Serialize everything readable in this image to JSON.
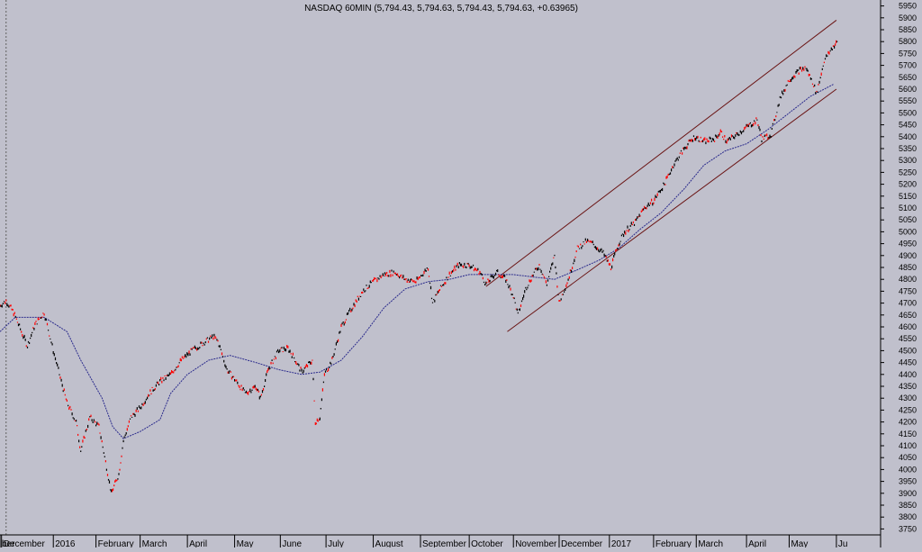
{
  "header": {
    "text": "NASDAQ 60MIN (5,794.43, 5,794.63, 5,794.43, 5,794.63, +0.63965)"
  },
  "colors": {
    "background": "#c0c0cc",
    "price_up": "#000000",
    "price_down": "#ff0000",
    "moving_average": "#2a2a8c",
    "trend_channel": "#6a1414",
    "axis": "#000000"
  },
  "chart_data": {
    "type": "line",
    "title": "NASDAQ 60MIN (5,794.43, 5,794.63, 5,794.43, 5,794.63, +0.63965)",
    "xlabel": "",
    "ylabel": "",
    "ylim": [
      3725,
      5975
    ],
    "xlim": [
      "2015-11-30",
      "2017-06-30"
    ],
    "y_ticks": [
      3750,
      3800,
      3850,
      3900,
      3950,
      4000,
      4050,
      4100,
      4150,
      4200,
      4250,
      4300,
      4350,
      4400,
      4450,
      4500,
      4550,
      4600,
      4650,
      4700,
      4750,
      4800,
      4850,
      4900,
      4950,
      5000,
      5050,
      5100,
      5150,
      5200,
      5250,
      5300,
      5350,
      5400,
      5450,
      5500,
      5550,
      5600,
      5650,
      5700,
      5750,
      5800,
      5850,
      5900,
      5950
    ],
    "x_ticks": [
      {
        "label": "ber",
        "date": "2015-11-30"
      },
      {
        "label": "December",
        "date": "2015-12-01"
      },
      {
        "label": "2016",
        "date": "2016-01-04"
      },
      {
        "label": "February",
        "date": "2016-02-01"
      },
      {
        "label": "March",
        "date": "2016-03-01"
      },
      {
        "label": "April",
        "date": "2016-04-01"
      },
      {
        "label": "May",
        "date": "2016-05-02"
      },
      {
        "label": "June",
        "date": "2016-06-01"
      },
      {
        "label": "July",
        "date": "2016-07-01"
      },
      {
        "label": "August",
        "date": "2016-08-01"
      },
      {
        "label": "September",
        "date": "2016-09-01"
      },
      {
        "label": "October",
        "date": "2016-10-03"
      },
      {
        "label": "November",
        "date": "2016-11-01"
      },
      {
        "label": "December",
        "date": "2016-12-01"
      },
      {
        "label": "2017",
        "date": "2017-01-03"
      },
      {
        "label": "February",
        "date": "2017-02-01"
      },
      {
        "label": "March",
        "date": "2017-03-01"
      },
      {
        "label": "April",
        "date": "2017-04-03"
      },
      {
        "label": "May",
        "date": "2017-05-01"
      },
      {
        "label": "Ju",
        "date": "2017-06-01"
      }
    ],
    "vertical_marker_date": "2015-12-04",
    "series": [
      {
        "values_role": "price",
        "points": [
          [
            "2015-11-30",
            4690
          ],
          [
            "2015-12-04",
            4710
          ],
          [
            "2015-12-09",
            4660
          ],
          [
            "2015-12-14",
            4580
          ],
          [
            "2015-12-18",
            4520
          ],
          [
            "2015-12-23",
            4610
          ],
          [
            "2015-12-29",
            4660
          ],
          [
            "2016-01-04",
            4500
          ],
          [
            "2016-01-08",
            4400
          ],
          [
            "2016-01-13",
            4280
          ],
          [
            "2016-01-19",
            4200
          ],
          [
            "2016-01-22",
            4080
          ],
          [
            "2016-01-28",
            4220
          ],
          [
            "2016-02-03",
            4180
          ],
          [
            "2016-02-08",
            4010
          ],
          [
            "2016-02-11",
            3900
          ],
          [
            "2016-02-16",
            3980
          ],
          [
            "2016-02-19",
            4120
          ],
          [
            "2016-02-24",
            4220
          ],
          [
            "2016-03-01",
            4260
          ],
          [
            "2016-03-07",
            4320
          ],
          [
            "2016-03-14",
            4370
          ],
          [
            "2016-03-21",
            4400
          ],
          [
            "2016-03-28",
            4460
          ],
          [
            "2016-04-04",
            4500
          ],
          [
            "2016-04-11",
            4530
          ],
          [
            "2016-04-18",
            4560
          ],
          [
            "2016-04-21",
            4540
          ],
          [
            "2016-04-27",
            4420
          ],
          [
            "2016-05-02",
            4380
          ],
          [
            "2016-05-09",
            4320
          ],
          [
            "2016-05-16",
            4350
          ],
          [
            "2016-05-19",
            4300
          ],
          [
            "2016-05-24",
            4420
          ],
          [
            "2016-05-31",
            4500
          ],
          [
            "2016-06-06",
            4510
          ],
          [
            "2016-06-10",
            4470
          ],
          [
            "2016-06-15",
            4410
          ],
          [
            "2016-06-22",
            4460
          ],
          [
            "2016-06-24",
            4200
          ],
          [
            "2016-06-27",
            4220
          ],
          [
            "2016-06-30",
            4400
          ],
          [
            "2016-07-05",
            4460
          ],
          [
            "2016-07-11",
            4600
          ],
          [
            "2016-07-18",
            4680
          ],
          [
            "2016-07-25",
            4750
          ],
          [
            "2016-08-01",
            4790
          ],
          [
            "2016-08-08",
            4820
          ],
          [
            "2016-08-15",
            4830
          ],
          [
            "2016-08-22",
            4800
          ],
          [
            "2016-08-29",
            4790
          ],
          [
            "2016-09-06",
            4850
          ],
          [
            "2016-09-09",
            4700
          ],
          [
            "2016-09-13",
            4750
          ],
          [
            "2016-09-20",
            4820
          ],
          [
            "2016-09-26",
            4860
          ],
          [
            "2016-10-03",
            4860
          ],
          [
            "2016-10-10",
            4830
          ],
          [
            "2016-10-14",
            4780
          ],
          [
            "2016-10-21",
            4830
          ],
          [
            "2016-10-27",
            4800
          ],
          [
            "2016-11-01",
            4730
          ],
          [
            "2016-11-04",
            4650
          ],
          [
            "2016-11-09",
            4760
          ],
          [
            "2016-11-14",
            4820
          ],
          [
            "2016-11-18",
            4860
          ],
          [
            "2016-11-23",
            4780
          ],
          [
            "2016-11-28",
            4900
          ],
          [
            "2016-12-01",
            4700
          ],
          [
            "2016-12-07",
            4800
          ],
          [
            "2016-12-13",
            4930
          ],
          [
            "2016-12-19",
            4960
          ],
          [
            "2016-12-23",
            4950
          ],
          [
            "2016-12-30",
            4910
          ],
          [
            "2017-01-04",
            4850
          ],
          [
            "2017-01-09",
            4950
          ],
          [
            "2017-01-13",
            5000
          ],
          [
            "2017-01-20",
            5040
          ],
          [
            "2017-01-26",
            5100
          ],
          [
            "2017-02-01",
            5130
          ],
          [
            "2017-02-08",
            5200
          ],
          [
            "2017-02-14",
            5280
          ],
          [
            "2017-02-21",
            5350
          ],
          [
            "2017-02-28",
            5400
          ],
          [
            "2017-03-06",
            5380
          ],
          [
            "2017-03-13",
            5390
          ],
          [
            "2017-03-17",
            5420
          ],
          [
            "2017-03-21",
            5380
          ],
          [
            "2017-03-28",
            5410
          ],
          [
            "2017-04-03",
            5440
          ],
          [
            "2017-04-10",
            5470
          ],
          [
            "2017-04-13",
            5390
          ],
          [
            "2017-04-19",
            5410
          ],
          [
            "2017-04-25",
            5560
          ],
          [
            "2017-05-01",
            5640
          ],
          [
            "2017-05-08",
            5680
          ],
          [
            "2017-05-12",
            5690
          ],
          [
            "2017-05-17",
            5620
          ],
          [
            "2017-05-19",
            5580
          ],
          [
            "2017-05-24",
            5720
          ],
          [
            "2017-05-30",
            5780
          ],
          [
            "2017-06-02",
            5800
          ]
        ]
      },
      {
        "values_role": "moving_average",
        "points": [
          [
            "2015-11-30",
            4580
          ],
          [
            "2015-12-10",
            4640
          ],
          [
            "2015-12-29",
            4640
          ],
          [
            "2016-01-13",
            4580
          ],
          [
            "2016-01-22",
            4460
          ],
          [
            "2016-02-05",
            4300
          ],
          [
            "2016-02-12",
            4180
          ],
          [
            "2016-02-19",
            4130
          ],
          [
            "2016-03-01",
            4160
          ],
          [
            "2016-03-14",
            4210
          ],
          [
            "2016-03-21",
            4320
          ],
          [
            "2016-04-01",
            4400
          ],
          [
            "2016-04-15",
            4460
          ],
          [
            "2016-04-29",
            4480
          ],
          [
            "2016-05-16",
            4450
          ],
          [
            "2016-05-31",
            4420
          ],
          [
            "2016-06-15",
            4400
          ],
          [
            "2016-06-27",
            4410
          ],
          [
            "2016-07-11",
            4460
          ],
          [
            "2016-07-25",
            4560
          ],
          [
            "2016-08-08",
            4680
          ],
          [
            "2016-08-22",
            4760
          ],
          [
            "2016-09-06",
            4790
          ],
          [
            "2016-09-20",
            4800
          ],
          [
            "2016-10-03",
            4820
          ],
          [
            "2016-10-17",
            4820
          ],
          [
            "2016-11-01",
            4820
          ],
          [
            "2016-11-14",
            4810
          ],
          [
            "2016-11-28",
            4800
          ],
          [
            "2016-12-13",
            4840
          ],
          [
            "2016-12-27",
            4880
          ],
          [
            "2017-01-09",
            4930
          ],
          [
            "2017-01-23",
            5010
          ],
          [
            "2017-02-06",
            5080
          ],
          [
            "2017-02-21",
            5180
          ],
          [
            "2017-03-06",
            5280
          ],
          [
            "2017-03-20",
            5340
          ],
          [
            "2017-04-03",
            5370
          ],
          [
            "2017-04-17",
            5430
          ],
          [
            "2017-05-01",
            5500
          ],
          [
            "2017-05-15",
            5570
          ],
          [
            "2017-05-30",
            5620
          ]
        ]
      },
      {
        "values_role": "channel_upper",
        "points": [
          [
            "2016-10-14",
            4770
          ],
          [
            "2017-06-01",
            5890
          ]
        ]
      },
      {
        "values_role": "channel_lower",
        "points": [
          [
            "2016-10-28",
            4580
          ],
          [
            "2017-06-01",
            5600
          ]
        ]
      }
    ]
  }
}
